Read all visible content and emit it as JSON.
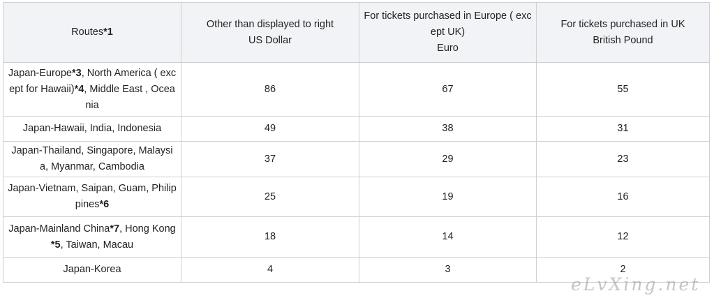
{
  "table": {
    "headers": [
      {
        "text": "Routes",
        "mark": "*1"
      },
      {
        "line1": "Other than displayed to right",
        "line2": "US Dollar"
      },
      {
        "line1": "For tickets purchased in Europe ( except UK)",
        "line2": "Euro"
      },
      {
        "line1": "For tickets purchased in UK",
        "line2": "British Pound"
      }
    ],
    "rows": [
      {
        "route": [
          {
            "t": "Japan-Europe",
            "b": false
          },
          {
            "t": "*3",
            "b": true
          },
          {
            "t": ", North America ( except for Hawaii)",
            "b": false
          },
          {
            "t": "*4",
            "b": true
          },
          {
            "t": ", Middle East , Oceania",
            "b": false
          }
        ],
        "usd": "86",
        "eur": "67",
        "gbp": "55"
      },
      {
        "route": [
          {
            "t": "Japan-Hawaii, India, Indonesia",
            "b": false
          }
        ],
        "usd": "49",
        "eur": "38",
        "gbp": "31"
      },
      {
        "route": [
          {
            "t": "Japan-Thailand, Singapore, Malaysia, Myanmar, Cambodia",
            "b": false
          }
        ],
        "usd": "37",
        "eur": "29",
        "gbp": "23"
      },
      {
        "route": [
          {
            "t": "Japan-Vietnam, Saipan, Guam, Philippines",
            "b": false
          },
          {
            "t": "*6",
            "b": true
          }
        ],
        "usd": "25",
        "eur": "19",
        "gbp": "16"
      },
      {
        "route": [
          {
            "t": "Japan-Mainland China",
            "b": false
          },
          {
            "t": "*7",
            "b": true
          },
          {
            "t": ", Hong Kong",
            "b": false
          },
          {
            "t": "*5",
            "b": true
          },
          {
            "t": ", Taiwan, Macau",
            "b": false
          }
        ],
        "usd": "18",
        "eur": "14",
        "gbp": "12"
      },
      {
        "route": [
          {
            "t": "Japan-Korea",
            "b": false
          }
        ],
        "usd": "4",
        "eur": "3",
        "gbp": "2"
      }
    ]
  },
  "watermark": "eLvXing.net"
}
